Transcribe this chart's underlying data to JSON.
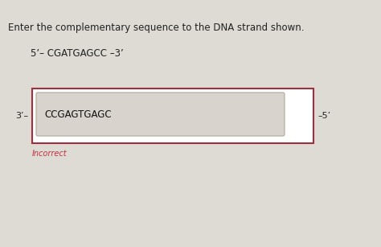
{
  "title_text": "Enter the complementary sequence to the DNA strand shown.",
  "strand_label": "5’– CGATGAGCC –3’",
  "left_label": "3’–",
  "right_label": "–5’",
  "input_text": "CCGAGTGAGC",
  "incorrect_text": "Incorrect",
  "bg_color": "#dedad4",
  "outer_box_edge": "#a03040",
  "inner_box_color": "#d8d3cc",
  "inner_box_edge": "#b0a898",
  "incorrect_color": "#c03040",
  "title_fontsize": 8.5,
  "strand_fontsize": 8.5,
  "label_fontsize": 8.0,
  "input_fontsize": 8.5,
  "incorrect_fontsize": 7.0
}
